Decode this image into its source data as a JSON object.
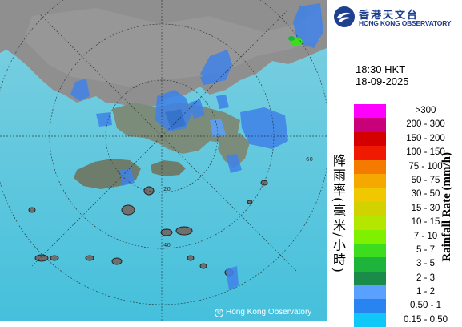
{
  "header": {
    "org_name_zh": "香港天文台",
    "org_name_en": "HONG KONG OBSERVATORY"
  },
  "timestamp": {
    "time": "18:30 HKT",
    "date": "18-09-2025"
  },
  "legend": {
    "title_zh": "降雨率(毫米/小時)",
    "title_en": "Rainfall Rate (mm/h)",
    "items": [
      {
        "label": ">300",
        "color": "#ff00ff"
      },
      {
        "label": "200 - 300",
        "color": "#c8007a"
      },
      {
        "label": "150 - 200",
        "color": "#d40000"
      },
      {
        "label": "100 - 150",
        "color": "#f01a00"
      },
      {
        "label": "75 - 100",
        "color": "#f57a00"
      },
      {
        "label": "50 - 75",
        "color": "#f5a800"
      },
      {
        "label": "30 - 50",
        "color": "#f0c800"
      },
      {
        "label": "15 - 30",
        "color": "#d2d200"
      },
      {
        "label": "10 - 15",
        "color": "#b4e600"
      },
      {
        "label": "7 - 10",
        "color": "#7ef000"
      },
      {
        "label": "5 - 7",
        "color": "#3cdc1e"
      },
      {
        "label": "3 - 5",
        "color": "#1eb43c"
      },
      {
        "label": "2 - 3",
        "color": "#1a8c4a"
      },
      {
        "label": "1 - 2",
        "color": "#5aa0ff"
      },
      {
        "label": "0.50 - 1",
        "color": "#2884f0"
      },
      {
        "label": "0.15 - 0.50",
        "color": "#10c8f8"
      }
    ]
  },
  "map": {
    "range_ring_labels": [
      "20",
      "40",
      "60"
    ],
    "sea_color": "#4cc3d9",
    "land_color": "#8a8a8a",
    "rain_color": "#3f82e8"
  },
  "footer": {
    "copyright": "Hong Kong Observatory"
  }
}
